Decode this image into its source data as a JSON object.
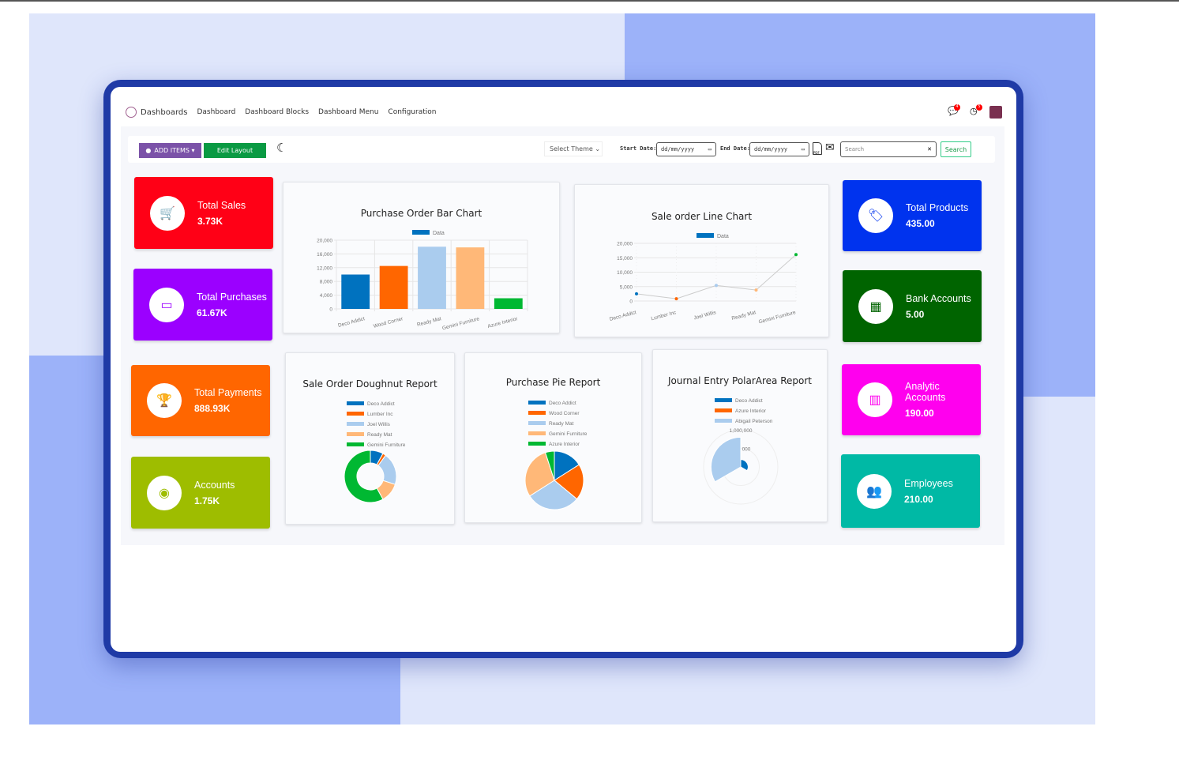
{
  "nav": {
    "brand": "Dashboards",
    "items": [
      "Dashboard",
      "Dashboard Blocks",
      "Dashboard Menu",
      "Configuration"
    ],
    "chat_badge": "4",
    "activity_badge": "5"
  },
  "toolbar": {
    "add_items": "ADD ITEMS",
    "edit_layout": "Edit Layout",
    "theme": "Select Theme",
    "start_label": "Start Date:",
    "start_placeholder": "dd/mm/yyyy",
    "end_label": "End Date:",
    "end_placeholder": "dd/mm/yyyy",
    "pdf": "PDF",
    "search_placeholder": "Search",
    "search_button": "Search"
  },
  "tiles_left": [
    {
      "title": "Total Sales",
      "value": "3.73K",
      "color": "#ff0016",
      "icon": "cart-icon"
    },
    {
      "title": "Total Purchases",
      "value": "61.67K",
      "color": "#9b00ff",
      "icon": "credit-card-icon"
    },
    {
      "title": "Total Payments",
      "value": "888.93K",
      "color": "#ff6600",
      "icon": "trophy-icon"
    },
    {
      "title": "Accounts",
      "value": "1.75K",
      "color": "#9ebd00",
      "icon": "user-circle-icon"
    }
  ],
  "tiles_right": [
    {
      "title": "Total Products",
      "value": "435.00",
      "color": "#0033ee",
      "icon": "tag-icon"
    },
    {
      "title": "Bank Accounts",
      "value": "5.00",
      "color": "#006400",
      "icon": "building-icon"
    },
    {
      "title": "Analytic Accounts",
      "value": "190.00",
      "color": "#ff00ee",
      "icon": "bar-chart-icon"
    },
    {
      "title": "Employees",
      "value": "210.00",
      "color": "#00b9a5",
      "icon": "users-icon"
    }
  ],
  "chart_data": [
    {
      "type": "bar",
      "title": "Purchase Order Bar Chart",
      "legend": "Data",
      "categories": [
        "Deco Addict",
        "Wood Corner",
        "Ready Mat",
        "Gemini Furniture",
        "Azure Interior"
      ],
      "values": [
        10000,
        12500,
        18100,
        17900,
        3100
      ],
      "ylim": [
        0,
        20000
      ],
      "yticks": [
        "20,000",
        "16,000",
        "12,000",
        "8,000",
        "4,000",
        "0"
      ],
      "colors": [
        "#0072bf",
        "#ff6600",
        "#aaccee",
        "#ffb878",
        "#00b832"
      ],
      "grid": true,
      "legend_position": "top"
    },
    {
      "type": "line",
      "title": "Sale order Line Chart",
      "legend": "Data",
      "categories": [
        "Deco Addict",
        "Lumber Inc",
        "Joel Willis",
        "Ready Mat",
        "Gemini Furniture"
      ],
      "values": [
        2500,
        800,
        5400,
        3800,
        16100
      ],
      "ylim": [
        0,
        20000
      ],
      "yticks": [
        "20,000",
        "15,000",
        "10,000",
        "5,000",
        "0"
      ],
      "colors": [
        "#0072bf",
        "#ff6600",
        "#aaccee",
        "#ffb878",
        "#00b832"
      ],
      "grid": true,
      "legend_position": "top"
    },
    {
      "type": "doughnut",
      "title": "Sale Order Doughnut Report",
      "categories": [
        "Deco Addict",
        "Lumber Inc",
        "Joel Willis",
        "Ready Mat",
        "Gemini Furniture"
      ],
      "values": [
        8,
        2,
        20,
        12,
        58
      ],
      "colors": [
        "#0072bf",
        "#ff6600",
        "#aaccee",
        "#ffb878",
        "#00b832"
      ],
      "legend_position": "top"
    },
    {
      "type": "pie",
      "title": "Purchase Pie Report",
      "categories": [
        "Deco Addict",
        "Wood Corner",
        "Ready Mat",
        "Gemini Furniture",
        "Azure Interior"
      ],
      "values": [
        16,
        20,
        30,
        29,
        5
      ],
      "colors": [
        "#0072bf",
        "#ff6600",
        "#aaccee",
        "#ffb878",
        "#00b832"
      ],
      "legend_position": "top"
    },
    {
      "type": "polarArea",
      "title": "Journal Entry PolarArea Report",
      "categories": [
        "Deco Addict",
        "Azure Interior",
        "Abigail Peterson"
      ],
      "values": [
        200000,
        30000,
        800000
      ],
      "rmax": 1000000,
      "rticks": [
        "1,000,000",
        "000"
      ],
      "colors": [
        "#0072bf",
        "#ff6600",
        "#aaccee"
      ],
      "legend_position": "top"
    }
  ]
}
